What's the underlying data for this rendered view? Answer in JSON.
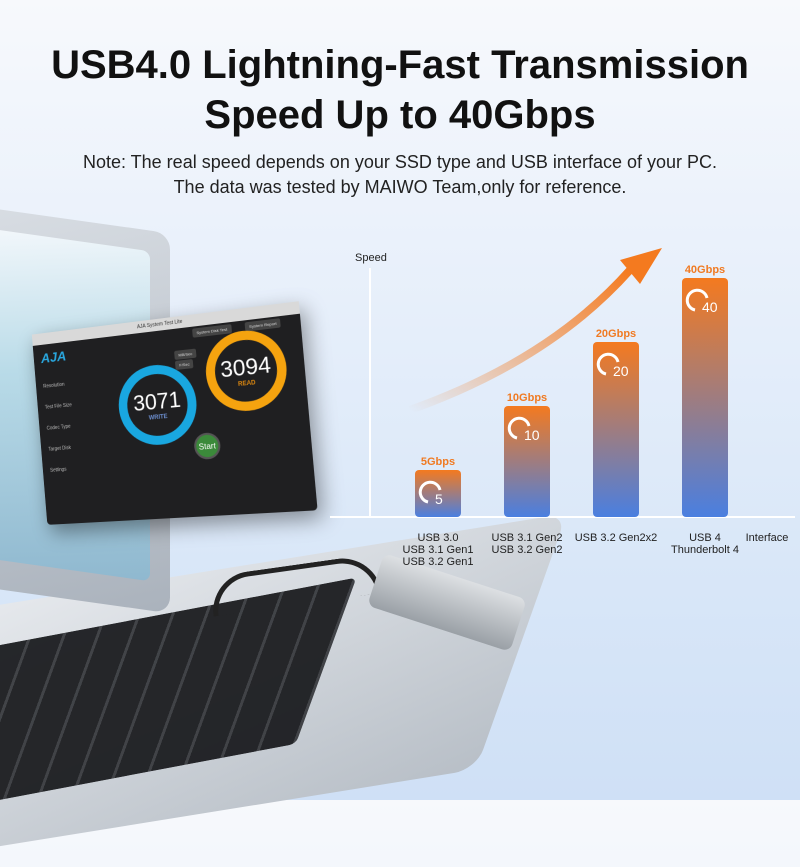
{
  "header": {
    "title_line1": "USB4.0 Lightning-Fast Transmission",
    "title_line2": "Speed Up to 40Gbps",
    "note_line1": "Note: The real speed depends on your SSD type and USB interface of your PC.",
    "note_line2": "The data was tested by MAIWO Team,only for reference."
  },
  "app_screenshot": {
    "window_title": "AJA System Test Lite",
    "logo": "AJA",
    "buttons": [
      "System Disk Test",
      "System Report"
    ],
    "units": [
      "MB/Sec",
      "F/Sec"
    ],
    "write_value": "3071",
    "write_label": "WRITE",
    "read_value": "3094",
    "read_label": "READ",
    "unit_label": "MB/SEC",
    "start_label": "Start",
    "sidebar": [
      "Resolution",
      "Test File Size",
      "Codec Type",
      "Target Disk",
      "Settings"
    ]
  },
  "chart_data": {
    "type": "bar",
    "xlabel": "Interface",
    "ylabel": "Speed",
    "categories": [
      "USB 3.0\nUSB 3.1 Gen1\nUSB 3.2 Gen1",
      "USB 3.1 Gen2\nUSB 3.2 Gen2",
      "USB 3.2 Gen2x2",
      "USB 4\nThunderbolt 4"
    ],
    "values": [
      5,
      10,
      20,
      40
    ],
    "data_labels": [
      "5Gbps",
      "10Gbps",
      "20Gbps",
      "40Gbps"
    ],
    "icon_labels": [
      "5",
      "10",
      "20",
      "40"
    ],
    "grid": false,
    "colors": {
      "top": "#f47a1f",
      "bottom": "#4a7fe0",
      "label": "#f07a22"
    }
  }
}
